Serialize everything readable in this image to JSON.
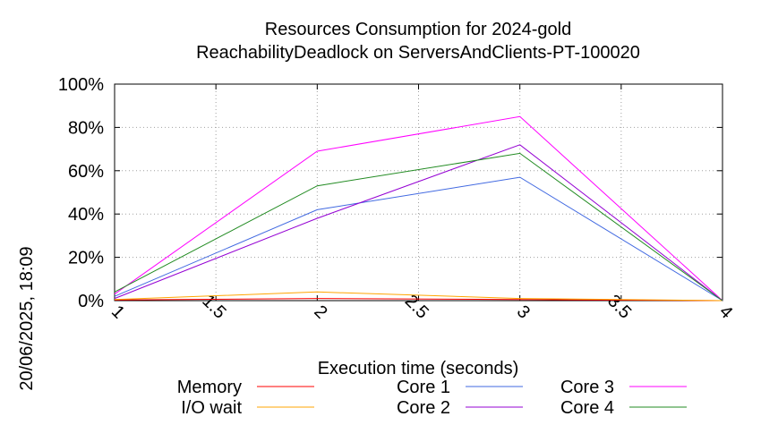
{
  "chart_data": {
    "type": "line",
    "title": [
      "Resources Consumption for 2024-gold",
      "ReachabilityDeadlock on ServersAndClients-PT-100020"
    ],
    "xlabel": "Execution time (seconds)",
    "ylabel": "",
    "side_stamp": "20/06/2025, 18:09",
    "xlim": [
      1,
      4
    ],
    "ylim": [
      0,
      100
    ],
    "x_ticks": [
      "1",
      "1.5",
      "2",
      "2.5",
      "3",
      "3.5",
      "4"
    ],
    "x_tick_values": [
      1,
      1.5,
      2,
      2.5,
      3,
      3.5,
      4
    ],
    "y_ticks": [
      "0%",
      "20%",
      "40%",
      "60%",
      "80%",
      "100%"
    ],
    "y_tick_values": [
      0,
      20,
      40,
      60,
      80,
      100
    ],
    "grid": true,
    "legend_position": "bottom",
    "series": [
      {
        "name": "Memory",
        "color": "#ff0000",
        "x": [
          1,
          2,
          3,
          4
        ],
        "y": [
          0.3,
          1.0,
          0.5,
          0
        ]
      },
      {
        "name": "I/O wait",
        "color": "#ffa500",
        "x": [
          1,
          2,
          3,
          4
        ],
        "y": [
          0.5,
          4.0,
          1.0,
          0
        ]
      },
      {
        "name": "Core 1",
        "color": "#4169e1",
        "x": [
          1,
          2,
          3,
          4
        ],
        "y": [
          2,
          42,
          57,
          0
        ]
      },
      {
        "name": "Core 2",
        "color": "#9400d3",
        "x": [
          1,
          2,
          3,
          4
        ],
        "y": [
          1,
          38,
          72,
          0
        ]
      },
      {
        "name": "Core 3",
        "color": "#ff00ff",
        "x": [
          1,
          2,
          3,
          4
        ],
        "y": [
          3,
          69,
          85,
          0
        ]
      },
      {
        "name": "Core 4",
        "color": "#228b22",
        "x": [
          1,
          2,
          3,
          4
        ],
        "y": [
          4,
          53,
          68,
          0
        ]
      }
    ]
  }
}
